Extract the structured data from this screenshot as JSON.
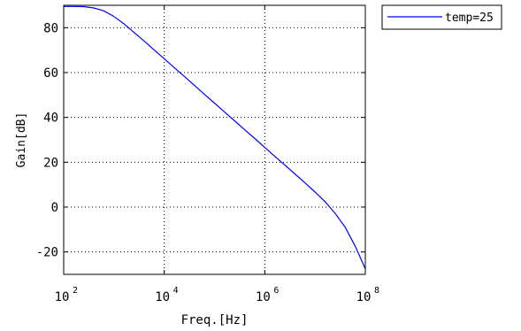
{
  "chart_data": {
    "type": "line",
    "title": "",
    "xlabel": "Freq.[Hz]",
    "ylabel": "Gain[dB]",
    "xscale": "log",
    "xlim": [
      100,
      100000000
    ],
    "ylim": [
      -30,
      90
    ],
    "x_ticks": [
      {
        "value": 100,
        "base": "10",
        "exp": "2"
      },
      {
        "value": 10000,
        "base": "10",
        "exp": "4"
      },
      {
        "value": 1000000,
        "base": "10",
        "exp": "6"
      },
      {
        "value": 100000000,
        "base": "10",
        "exp": "8"
      }
    ],
    "y_ticks": [
      -20,
      0,
      20,
      40,
      60,
      80
    ],
    "grid": true,
    "legend_position": "outside-top-right",
    "series": [
      {
        "name": "temp=25",
        "color": "#0000ff",
        "x": [
          100,
          158,
          251,
          398,
          631,
          1000,
          1585,
          2512,
          3981,
          6310,
          10000,
          15850,
          25120,
          39810,
          63100,
          100000,
          158500,
          251200,
          398100,
          631000,
          1000000,
          1585000,
          2512000,
          3981000,
          6310000,
          10000000,
          15850000,
          25120000,
          39810000,
          63100000,
          100000000
        ],
        "y": [
          89.5,
          89.5,
          89.4,
          88.8,
          87.5,
          85.0,
          81.7,
          77.9,
          74.1,
          70.1,
          66.2,
          62.2,
          58.3,
          54.3,
          50.3,
          46.4,
          42.4,
          38.5,
          34.5,
          30.6,
          26.6,
          22.6,
          18.7,
          14.8,
          10.8,
          6.7,
          2.4,
          -2.8,
          -9.0,
          -17.5,
          -27.5
        ]
      }
    ]
  }
}
